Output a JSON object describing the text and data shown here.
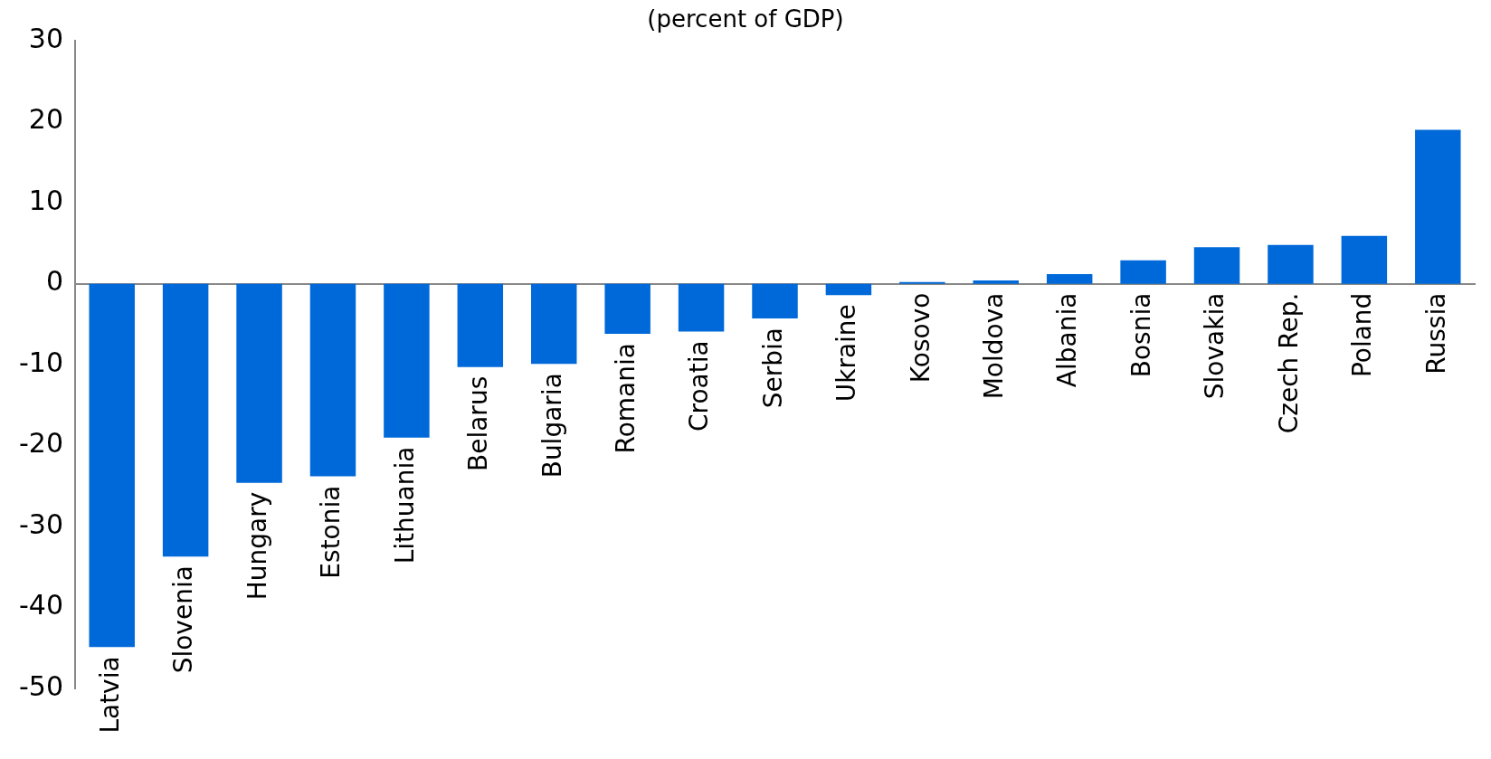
{
  "chart_data": {
    "type": "bar",
    "title": "(percent of GDP)",
    "categories": [
      "Latvia",
      "Slovenia",
      "Hungary",
      "Estonia",
      "Lithuania",
      "Belarus",
      "Bulgaria",
      "Romania",
      "Croatia",
      "Serbia",
      "Ukraine",
      "Kosovo",
      "Moldova",
      "Albania",
      "Bosnia",
      "Slovakia",
      "Czech Rep.",
      "Poland",
      "Russia"
    ],
    "values": [
      -44.9,
      -33.7,
      -24.6,
      -23.8,
      -19,
      -10.3,
      -9.9,
      -6.2,
      -5.9,
      -4.3,
      -1.4,
      0.2,
      0.4,
      1.2,
      2.9,
      4.5,
      4.8,
      5.9,
      19
    ],
    "color": "#0069d9",
    "ylim": [
      -50,
      30
    ],
    "yticks": [
      -50,
      -40,
      -30,
      -20,
      -10,
      0,
      10,
      20,
      30
    ],
    "grid": false,
    "legend": false
  }
}
